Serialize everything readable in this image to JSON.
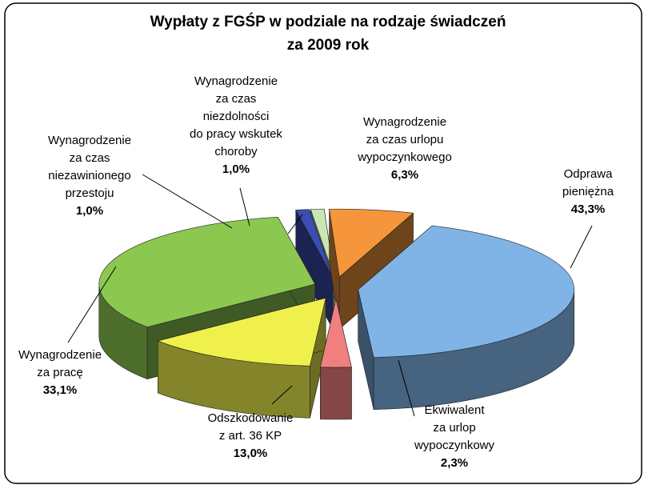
{
  "chart_data": {
    "type": "pie3d",
    "title": [
      "Wypłaty z FGŚP w podziale na rodzaje świadczeń",
      "za 2009 rok"
    ],
    "categories": [
      [
        "Odprawa",
        "pieniężna"
      ],
      [
        "Ekwiwalent",
        "za urlop",
        "wypoczynkowy"
      ],
      [
        "Odszkodowanie",
        "z art. 36 KP"
      ],
      [
        "Wynagrodzenie",
        "za pracę"
      ],
      [
        "Wynagrodzenie",
        "za czas",
        "niezawinionego",
        "przestoju"
      ],
      [
        "Wynagrodzenie",
        "za czas",
        "niezdolności",
        "do pracy wskutek",
        "choroby"
      ],
      [
        "Wynagrodzenie",
        "za czas urlopu",
        "wypoczynkowego"
      ]
    ],
    "values": [
      43.3,
      2.3,
      13.0,
      33.1,
      1.0,
      1.0,
      6.3
    ],
    "value_labels": [
      "43,3%",
      "2,3%",
      "13,0%",
      "33,1%",
      "1,0%",
      "1,0%",
      "6,3%"
    ],
    "colors": [
      "#80b4e6",
      "#f08080",
      "#f0f04c",
      "#8cc850",
      "#3a4eb4",
      "#c8e6b4",
      "#f5963c"
    ]
  }
}
